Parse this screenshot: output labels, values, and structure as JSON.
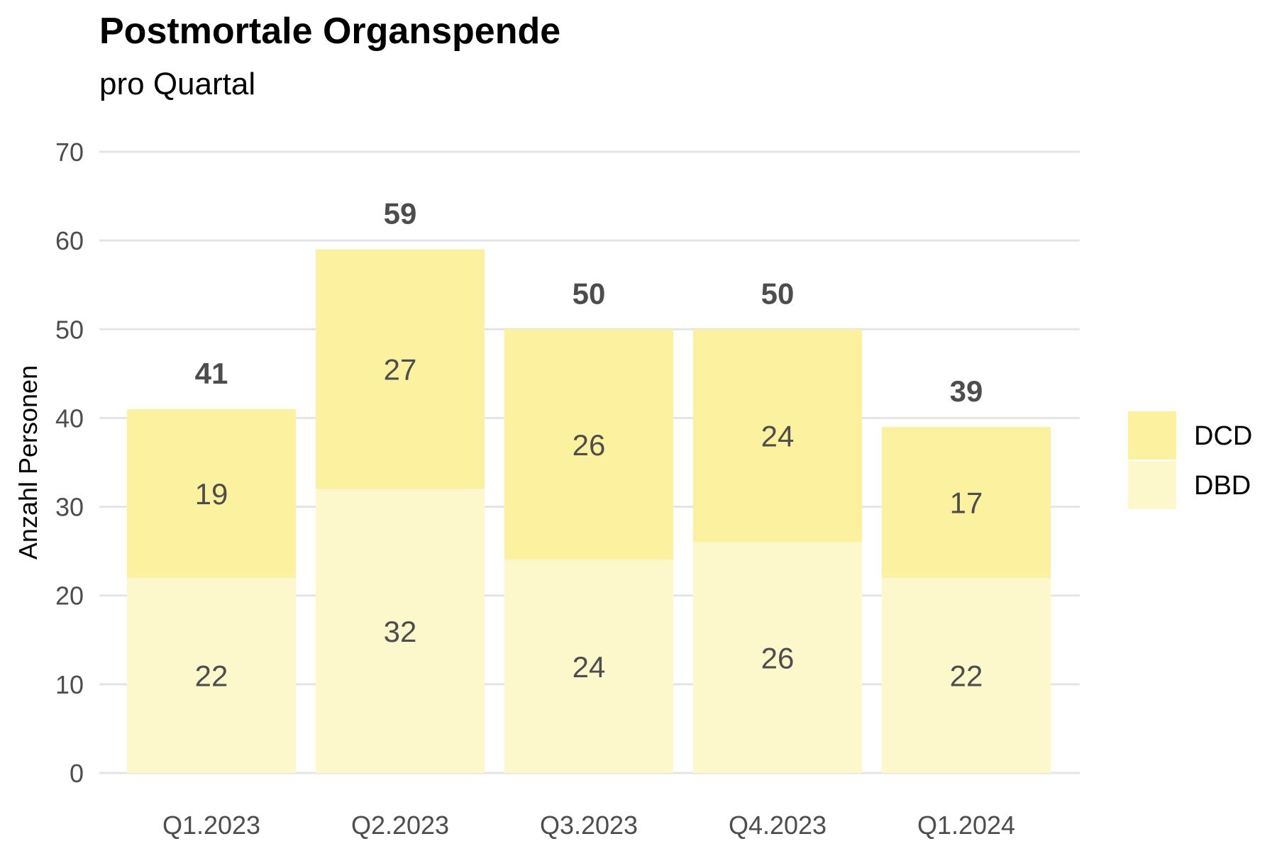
{
  "chart_data": {
    "type": "bar",
    "stacked": true,
    "title": "Postmortale Organspende",
    "subtitle": "pro Quartal",
    "xlabel": "",
    "ylabel": "Anzahl Personen",
    "categories": [
      "Q1.2023",
      "Q2.2023",
      "Q3.2023",
      "Q4.2023",
      "Q1.2024"
    ],
    "series": [
      {
        "name": "DBD",
        "values": [
          22,
          32,
          24,
          26,
          22
        ],
        "color": "#fdf7cc"
      },
      {
        "name": "DCD",
        "values": [
          19,
          27,
          26,
          24,
          17
        ],
        "color": "#fcf19e"
      }
    ],
    "totals": [
      "41",
      "59",
      "50",
      "50",
      "39"
    ],
    "ylim": [
      0,
      70
    ],
    "yticks": [
      "0",
      "10",
      "20",
      "30",
      "40",
      "50",
      "60",
      "70"
    ],
    "grid": true,
    "gridColor": "#e5e5e5",
    "legend": {
      "position": "right",
      "items": [
        {
          "label": "DCD",
          "color": "#fcf19e"
        },
        {
          "label": "DBD",
          "color": "#fdf7cc"
        }
      ]
    }
  }
}
